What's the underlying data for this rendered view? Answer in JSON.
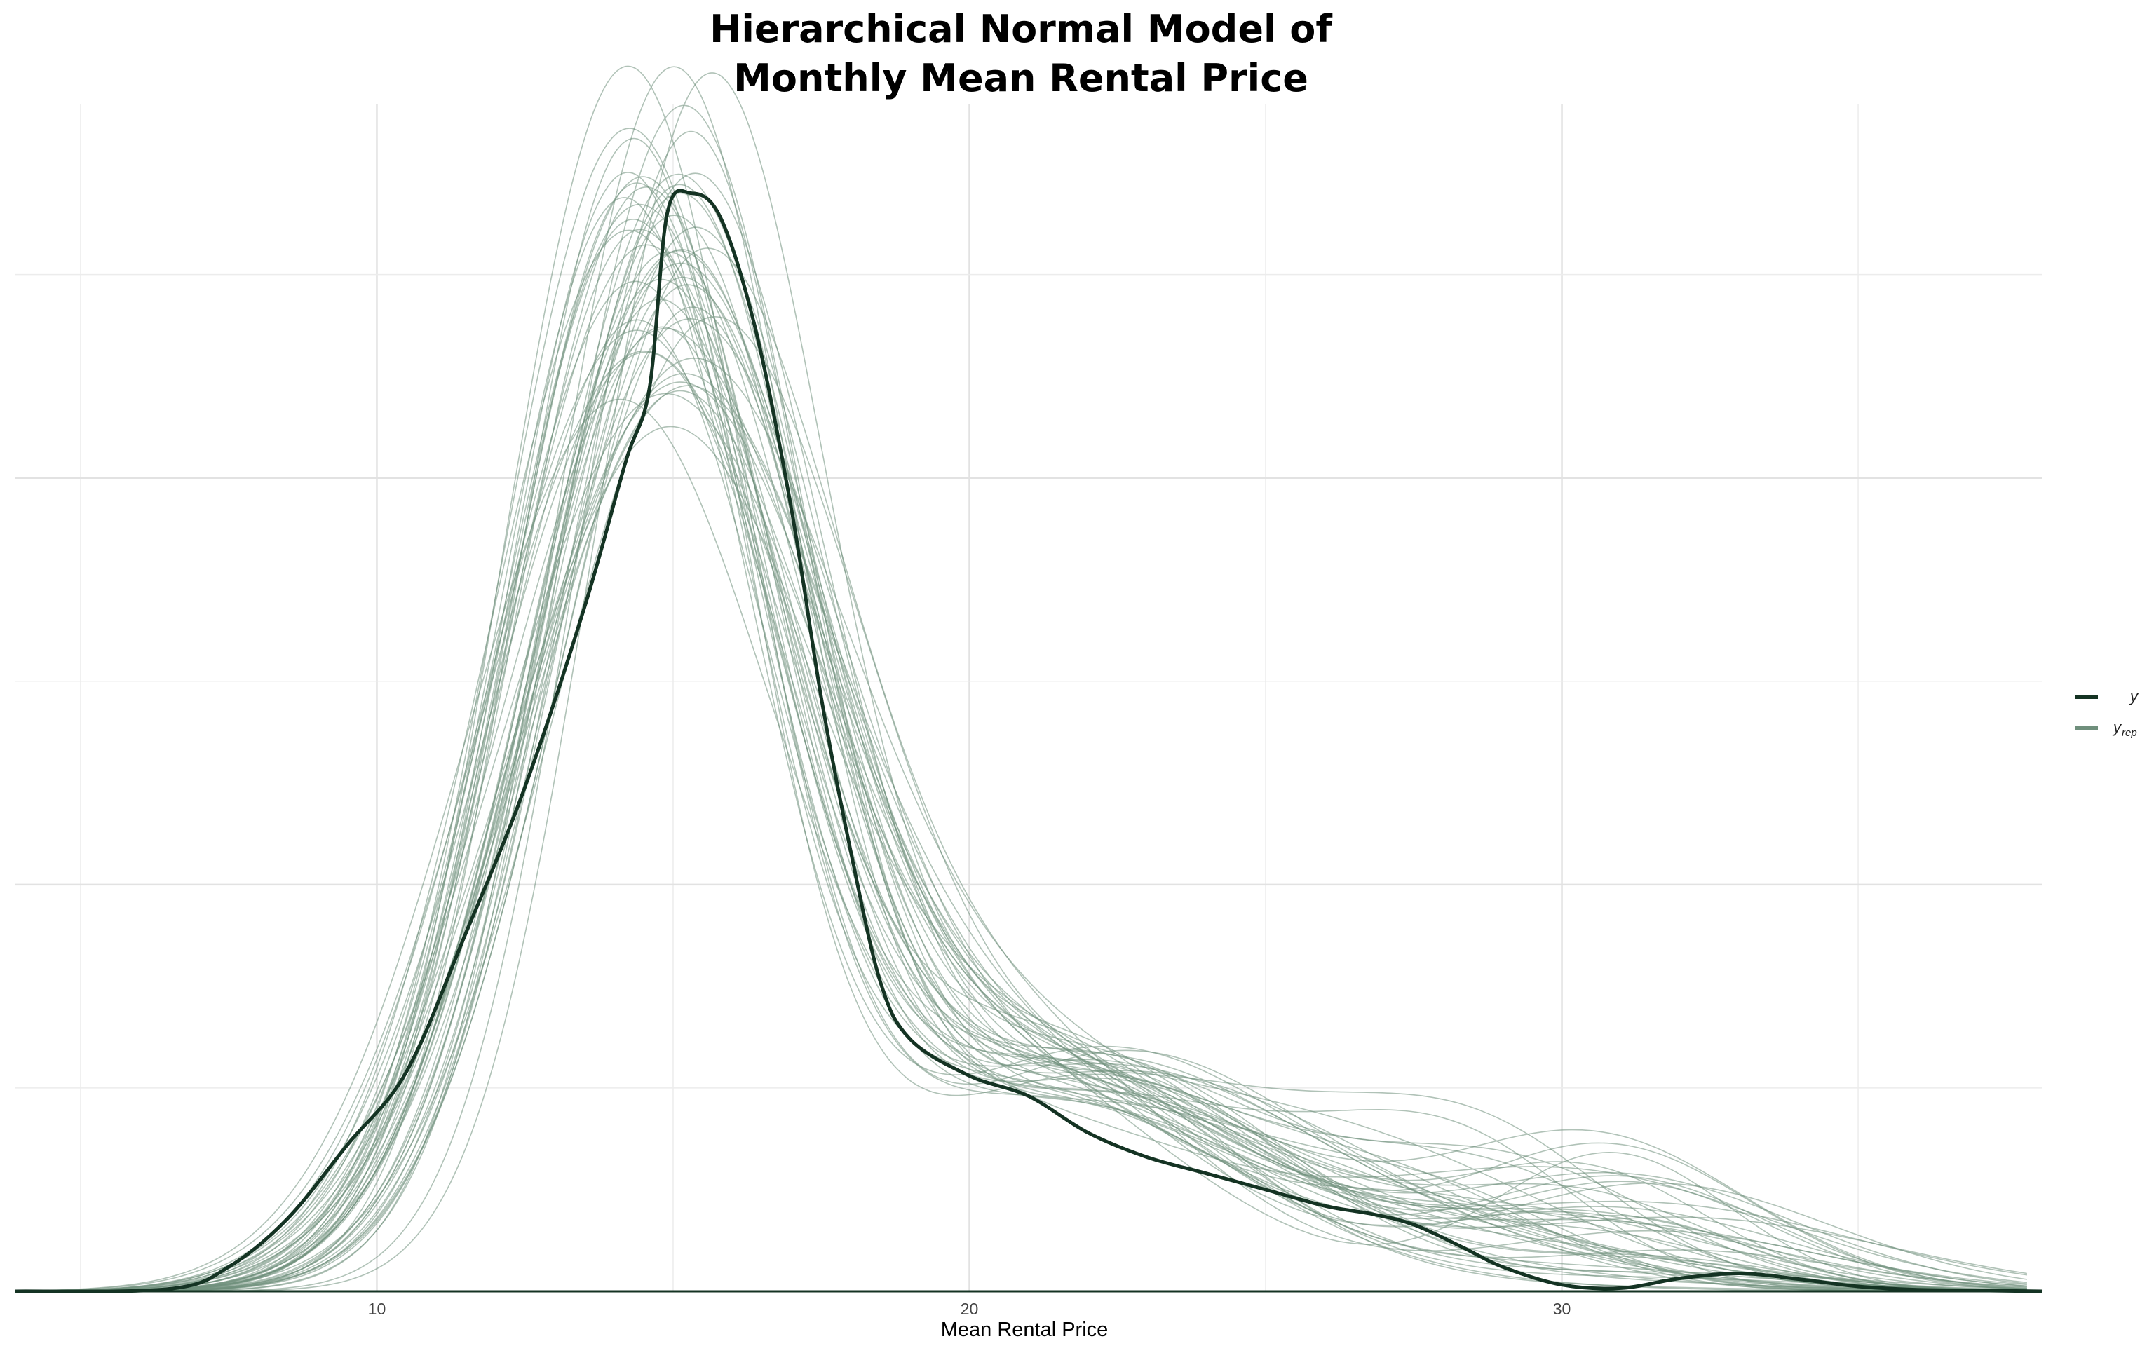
{
  "chart_data": {
    "type": "line",
    "title": [
      "Hierarchical Normal Model of",
      "Monthly Mean Rental Price"
    ],
    "xlabel": "Mean Rental Price",
    "ylabel": "",
    "xlim": [
      3.9,
      38.1
    ],
    "ylim": [
      0,
      0.146
    ],
    "x_ticks": [
      10,
      20,
      30
    ],
    "x_tick_labels": [
      "10",
      "20",
      "30"
    ],
    "x_grid_minor": [
      5,
      15,
      25,
      35
    ],
    "y_grid": [
      0.025,
      0.05,
      0.075,
      0.1,
      0.125
    ],
    "grid": true,
    "legend": {
      "placement": "right",
      "entries": [
        {
          "label": "y",
          "subscript": "",
          "color": "#143323"
        },
        {
          "label": "y",
          "subscript": "rep",
          "color": "#6f8f7c"
        }
      ]
    },
    "series": [
      {
        "name": "y",
        "color": "#143323",
        "x": [
          3.9,
          6.5,
          7.5,
          8.5,
          9.5,
          10.5,
          11.5,
          12.5,
          13.5,
          14.2,
          14.6,
          14.9,
          15.3,
          15.8,
          16.4,
          17.0,
          17.5,
          18.0,
          18.5,
          19.0,
          20.0,
          21.0,
          22.0,
          23.0,
          24.0,
          25.0,
          26.0,
          26.8,
          27.5,
          28.3,
          29.0,
          30.0,
          31.0,
          32.0,
          33.0,
          34.0,
          35.0,
          36.0,
          37.0,
          38.1
        ],
        "y": [
          0,
          0.0003,
          0.003,
          0.009,
          0.018,
          0.027,
          0.044,
          0.062,
          0.084,
          0.102,
          0.111,
          0.1325,
          0.135,
          0.132,
          0.118,
          0.096,
          0.073,
          0.054,
          0.038,
          0.031,
          0.0265,
          0.024,
          0.0195,
          0.0165,
          0.0145,
          0.0125,
          0.0105,
          0.0095,
          0.0082,
          0.0055,
          0.003,
          0.0008,
          0.0004,
          0.0016,
          0.0022,
          0.0015,
          0.0006,
          0.0002,
          0.0001,
          0
        ]
      },
      {
        "name": "y_rep",
        "color": "#6f8f7c",
        "replicates": 50
      }
    ]
  }
}
